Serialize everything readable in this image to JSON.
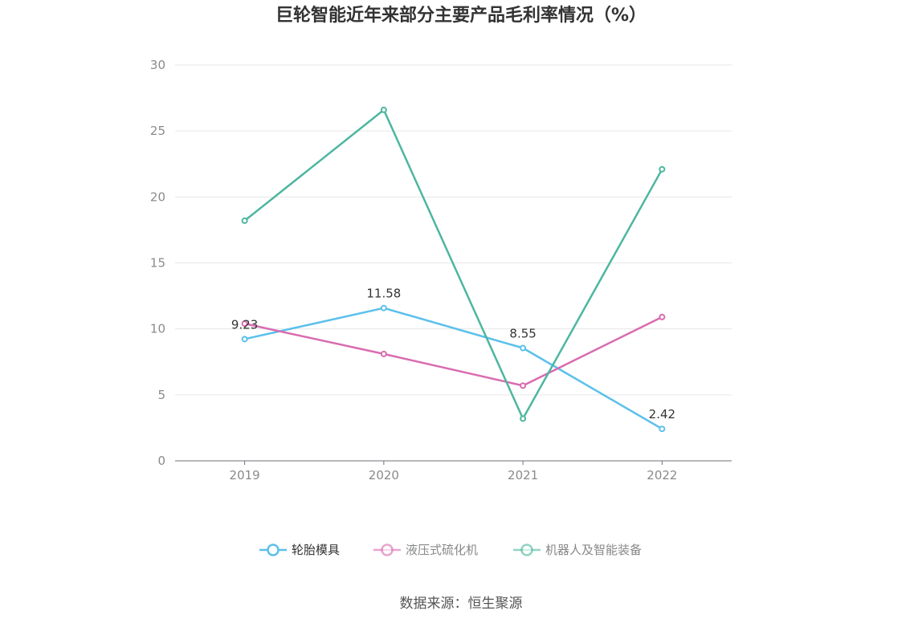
{
  "chart_data": {
    "type": "line",
    "title": "巨轮智能近年来部分主要产品毛利率情况（%）",
    "x": [
      "2019",
      "2020",
      "2021",
      "2022"
    ],
    "ylim": [
      0,
      30
    ],
    "yticks": [
      0,
      5,
      10,
      15,
      20,
      25,
      30
    ],
    "grid": true,
    "legend_position": "bottom",
    "series": [
      {
        "name": "轮胎模具",
        "color": "#5bc0eb",
        "values": [
          9.23,
          11.58,
          8.55,
          2.42
        ],
        "labels": [
          "9.23",
          "11.58",
          "8.55",
          "2.42"
        ]
      },
      {
        "name": "液压式硫化机",
        "color": "#d96bb0",
        "values": [
          10.4,
          8.1,
          5.7,
          10.9
        ],
        "labels": []
      },
      {
        "name": "机器人及智能装备",
        "color": "#4db6a0",
        "values": [
          18.2,
          26.6,
          3.2,
          22.1
        ],
        "labels": []
      }
    ]
  },
  "source": "数据来源：恒生聚源"
}
